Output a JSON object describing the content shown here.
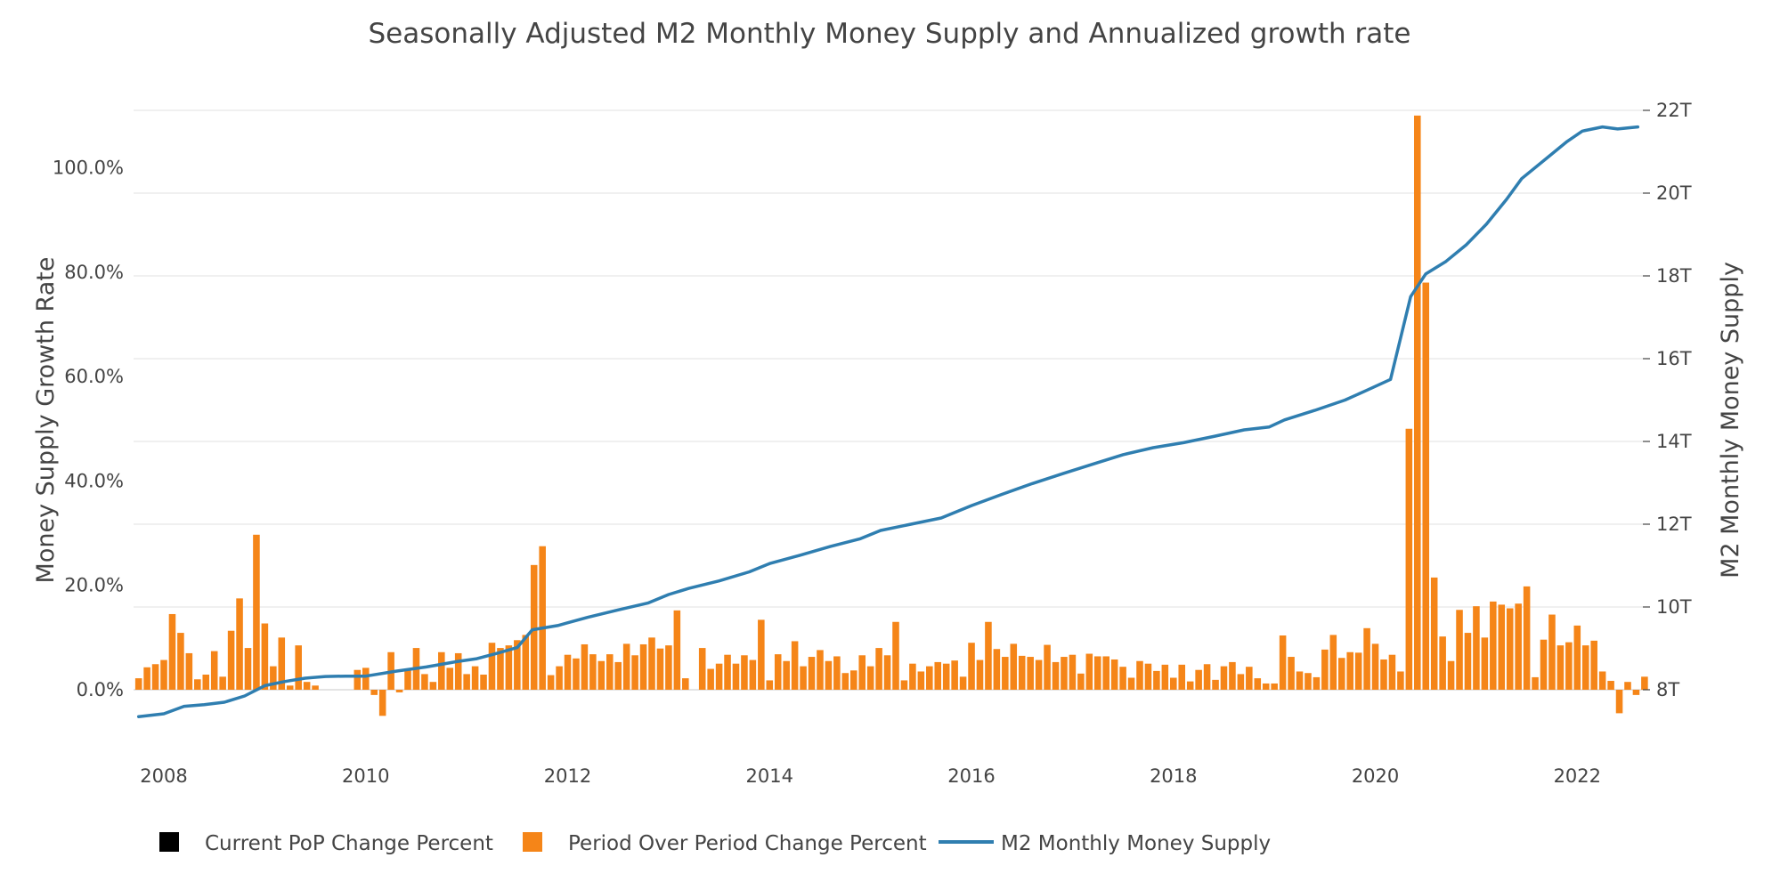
{
  "chart_data": {
    "type": "bar+line",
    "title": "Seasonally Adjusted M2 Monthly Money Supply and Annualized growth rate",
    "y_left_label": "Money Supply Growth Rate",
    "y_right_label": "M2 Monthly Money Supply",
    "x_ticks": [
      "2008",
      "2010",
      "2012",
      "2014",
      "2016",
      "2018",
      "2020",
      "2022"
    ],
    "x_tick_values": [
      2008,
      2010,
      2012,
      2014,
      2016,
      2018,
      2020,
      2022
    ],
    "y_left_ticks": [
      "0.0%",
      "20.0%",
      "40.0%",
      "60.0%",
      "80.0%",
      "100.0%"
    ],
    "y_left_tick_values": [
      0,
      20,
      40,
      60,
      80,
      100
    ],
    "y_right_ticks": [
      "8T",
      "10T",
      "12T",
      "14T",
      "16T",
      "18T",
      "20T",
      "22T"
    ],
    "y_right_tick_values": [
      8,
      10,
      12,
      14,
      16,
      18,
      20,
      22
    ],
    "x_range": [
      2007.7,
      2022.65
    ],
    "y_left_range": [
      -10,
      110
    ],
    "y_right_range": [
      7.2,
      22.2
    ],
    "grid": true,
    "legend_position": "bottom",
    "legend": [
      {
        "name": "Current PoP Change Percent",
        "color": "#000000",
        "kind": "square"
      },
      {
        "name": "Period Over Period Change Percent",
        "color": "#f58518",
        "kind": "square"
      },
      {
        "name": "M2 Monthly Money Supply",
        "color": "#2f7eb0",
        "kind": "line"
      }
    ],
    "series": [
      {
        "name": "Period Over Period Change Percent",
        "type": "bar",
        "color": "#f58518",
        "x_start": 2007.75,
        "x_step": 0.0833333,
        "values": [
          2.2,
          4.3,
          4.9,
          5.7,
          14.5,
          10.9,
          7.0,
          2.0,
          2.9,
          7.4,
          2.5,
          11.3,
          17.5,
          8.0,
          29.7,
          12.7,
          4.5,
          10.0,
          0.8,
          8.5,
          1.5,
          0.8,
          0.0,
          0.0,
          0.0,
          0.0,
          3.8,
          4.2,
          -1.0,
          -5.0,
          7.2,
          -0.5,
          4.0,
          8.0,
          3.0,
          1.5,
          7.2,
          4.2,
          7.0,
          3.0,
          4.5,
          2.9,
          9.0,
          8.0,
          8.5,
          9.5,
          10.5,
          23.9,
          27.5,
          2.8,
          4.5,
          6.7,
          6.0,
          8.7,
          6.8,
          5.5,
          6.8,
          5.3,
          8.8,
          6.6,
          8.7,
          10.0,
          7.9,
          8.5,
          15.2,
          2.2,
          0.0,
          8.0,
          4.0,
          5.0,
          6.7,
          5.0,
          6.6,
          5.7,
          13.4,
          1.8,
          6.8,
          5.5,
          9.3,
          4.5,
          6.3,
          7.6,
          5.5,
          6.4,
          3.2,
          3.7,
          6.6,
          4.5,
          8.0,
          6.6,
          13.0,
          1.8,
          5.0,
          3.5,
          4.5,
          5.3,
          5.0,
          5.6,
          2.5,
          9.0,
          5.7,
          13.0,
          7.8,
          6.3,
          8.8,
          6.5,
          6.3,
          5.7,
          8.6,
          5.3,
          6.3,
          6.7,
          3.1,
          6.9,
          6.4,
          6.4,
          5.8,
          4.4,
          2.3,
          5.5,
          5.0,
          3.6,
          4.8,
          2.3,
          4.8,
          1.6,
          3.8,
          4.9,
          1.9,
          4.5,
          5.3,
          3.0,
          4.4,
          2.2,
          1.2,
          1.2,
          10.4,
          6.3,
          3.5,
          3.2,
          2.4,
          7.7,
          10.5,
          6.1,
          7.2,
          7.1,
          11.8,
          8.8,
          5.8,
          6.7,
          3.5,
          50.0,
          110.0,
          78.0,
          21.5,
          10.2,
          5.5,
          15.3,
          10.9,
          16.0,
          10.0,
          16.9,
          16.3,
          15.6,
          16.5,
          19.8,
          2.4,
          9.6,
          14.4,
          8.5,
          9.1,
          12.3,
          8.5,
          9.4,
          3.5,
          1.7,
          -4.5,
          1.5,
          -1.0,
          2.5
        ]
      },
      {
        "name": "M2 Monthly Money Supply",
        "type": "line",
        "color": "#2f7eb0",
        "unit": "T",
        "points": [
          [
            2007.75,
            7.35
          ],
          [
            2008.0,
            7.42
          ],
          [
            2008.2,
            7.6
          ],
          [
            2008.4,
            7.64
          ],
          [
            2008.6,
            7.7
          ],
          [
            2008.8,
            7.85
          ],
          [
            2009.0,
            8.1
          ],
          [
            2009.2,
            8.2
          ],
          [
            2009.4,
            8.28
          ],
          [
            2009.6,
            8.32
          ],
          [
            2009.8,
            8.33
          ],
          [
            2010.0,
            8.33
          ],
          [
            2010.3,
            8.45
          ],
          [
            2010.6,
            8.55
          ],
          [
            2010.9,
            8.68
          ],
          [
            2011.1,
            8.75
          ],
          [
            2011.3,
            8.88
          ],
          [
            2011.5,
            9.02
          ],
          [
            2011.65,
            9.45
          ],
          [
            2011.9,
            9.55
          ],
          [
            2012.2,
            9.75
          ],
          [
            2012.5,
            9.93
          ],
          [
            2012.8,
            10.1
          ],
          [
            2013.0,
            10.3
          ],
          [
            2013.2,
            10.45
          ],
          [
            2013.5,
            10.63
          ],
          [
            2013.8,
            10.85
          ],
          [
            2014.0,
            11.05
          ],
          [
            2014.3,
            11.25
          ],
          [
            2014.6,
            11.46
          ],
          [
            2014.9,
            11.65
          ],
          [
            2015.1,
            11.85
          ],
          [
            2015.4,
            12.0
          ],
          [
            2015.7,
            12.15
          ],
          [
            2016.0,
            12.45
          ],
          [
            2016.3,
            12.72
          ],
          [
            2016.6,
            12.98
          ],
          [
            2016.9,
            13.22
          ],
          [
            2017.2,
            13.45
          ],
          [
            2017.5,
            13.68
          ],
          [
            2017.8,
            13.85
          ],
          [
            2018.1,
            13.97
          ],
          [
            2018.4,
            14.12
          ],
          [
            2018.7,
            14.28
          ],
          [
            2018.95,
            14.35
          ],
          [
            2019.1,
            14.52
          ],
          [
            2019.4,
            14.75
          ],
          [
            2019.7,
            15.0
          ],
          [
            2019.9,
            15.22
          ],
          [
            2020.15,
            15.5
          ],
          [
            2020.25,
            16.5
          ],
          [
            2020.35,
            17.5
          ],
          [
            2020.5,
            18.05
          ],
          [
            2020.7,
            18.35
          ],
          [
            2020.9,
            18.75
          ],
          [
            2021.1,
            19.25
          ],
          [
            2021.3,
            19.85
          ],
          [
            2021.45,
            20.35
          ],
          [
            2021.7,
            20.85
          ],
          [
            2021.9,
            21.25
          ],
          [
            2022.05,
            21.5
          ],
          [
            2022.25,
            21.6
          ],
          [
            2022.4,
            21.55
          ],
          [
            2022.6,
            21.6
          ]
        ]
      }
    ]
  }
}
